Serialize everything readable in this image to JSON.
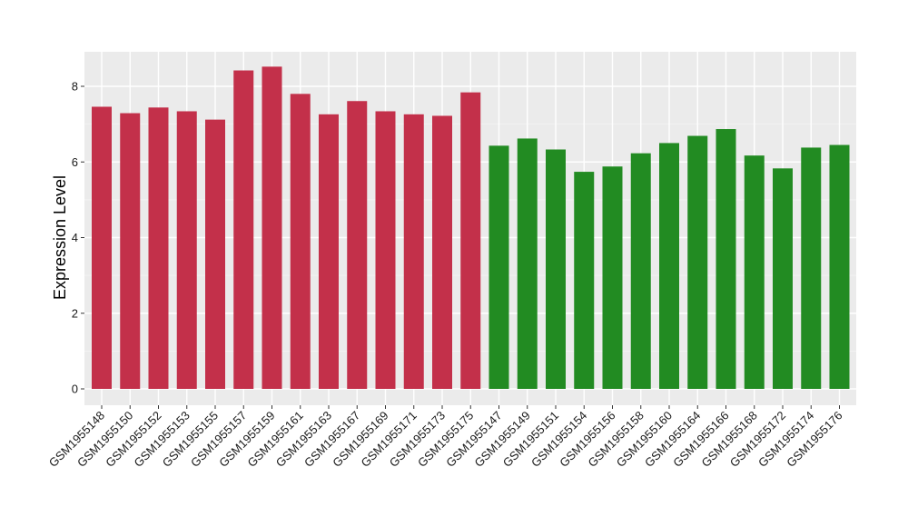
{
  "chart_data": {
    "type": "bar",
    "title": "",
    "xlabel": "",
    "ylabel": "Expression Level",
    "ylim": [
      0,
      8.9
    ],
    "yticks": [
      0,
      2,
      4,
      6,
      8
    ],
    "grid": true,
    "legend": "none",
    "colors": {
      "group_a": "#C3304A",
      "group_b": "#228B22",
      "panel_background": "#EBEBEB",
      "grid_major": "#FFFFFF",
      "grid_minor": "#F5F5F5",
      "page_background": "#FFFFFF"
    },
    "categories": [
      "GSM1955148",
      "GSM1955150",
      "GSM1955152",
      "GSM1955153",
      "GSM1955155",
      "GSM1955157",
      "GSM1955159",
      "GSM1955161",
      "GSM1955163",
      "GSM1955167",
      "GSM1955169",
      "GSM1955171",
      "GSM1955173",
      "GSM1955175",
      "GSM1955147",
      "GSM1955149",
      "GSM1955151",
      "GSM1955154",
      "GSM1955156",
      "GSM1955158",
      "GSM1955160",
      "GSM1955164",
      "GSM1955166",
      "GSM1955168",
      "GSM1955172",
      "GSM1955174",
      "GSM1955176"
    ],
    "values": [
      7.46,
      7.29,
      7.44,
      7.34,
      7.12,
      8.42,
      8.52,
      7.8,
      7.26,
      7.61,
      7.34,
      7.26,
      7.22,
      7.84,
      6.43,
      6.62,
      6.33,
      5.74,
      5.88,
      6.23,
      6.5,
      6.69,
      6.87,
      6.17,
      5.83,
      6.38,
      6.45
    ],
    "groups": [
      "a",
      "a",
      "a",
      "a",
      "a",
      "a",
      "a",
      "a",
      "a",
      "a",
      "a",
      "a",
      "a",
      "a",
      "b",
      "b",
      "b",
      "b",
      "b",
      "b",
      "b",
      "b",
      "b",
      "b",
      "b",
      "b",
      "b"
    ]
  }
}
